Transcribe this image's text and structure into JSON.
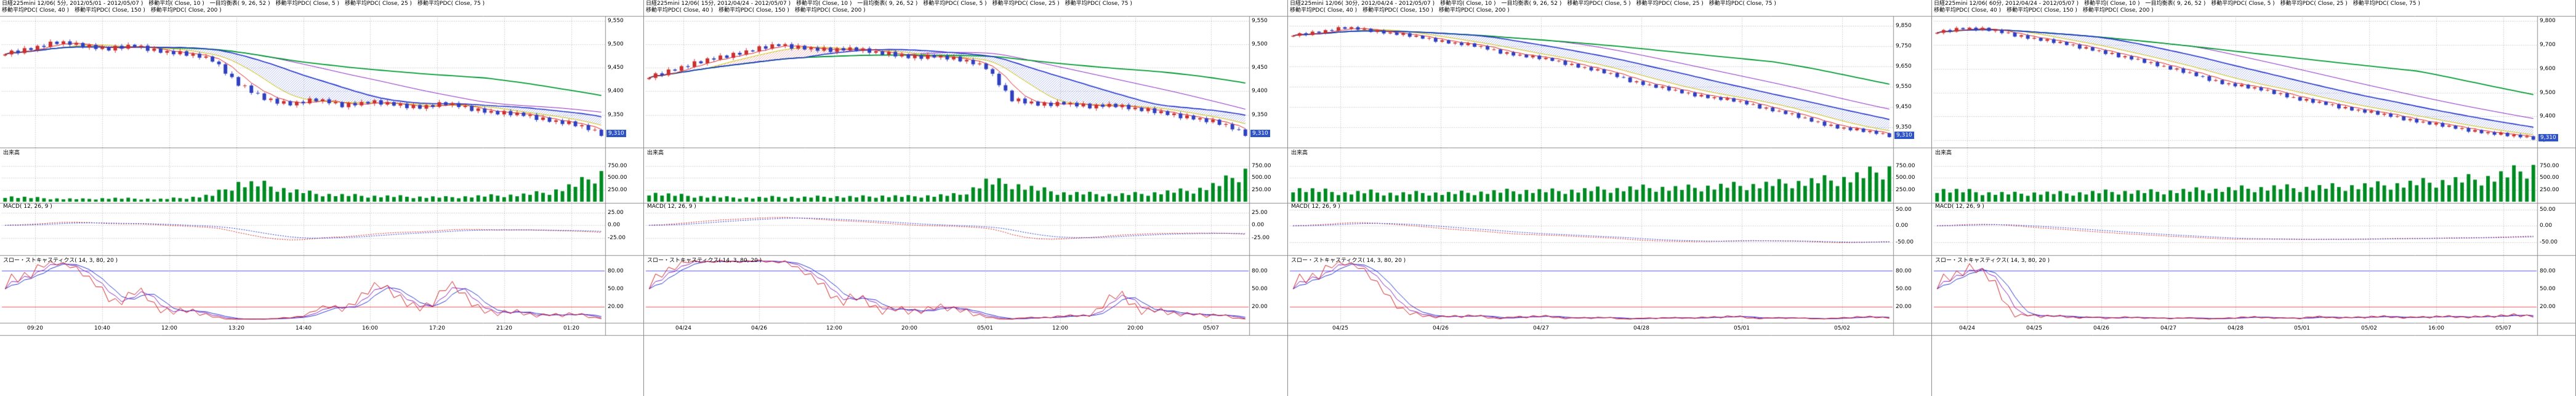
{
  "colors": {
    "up": "#cc3030",
    "down": "#3040c0",
    "volume": "#008a22",
    "ma5": "#e02020",
    "ma10": "#cfc000",
    "ma25": "#2233cc",
    "ma40": "#8822bb",
    "ma75": "#009933",
    "cloud_up": "#dd7070",
    "cloud_down": "#7080dd",
    "macd": "#cc2222",
    "signal": "#2233cc",
    "stoch_k": "#cc2222",
    "stoch_d": "#8822bb",
    "stoch_sd": "#2233cc",
    "ref_hi": "#7777ee",
    "ref_lo": "#ee7777",
    "grid": "#b8b8b8",
    "pane_border": "#8c8c8c",
    "badge_bg": "#2f54c8"
  },
  "sections": {
    "volume_label": "出来高",
    "macd_label": "MACD( 12, 26, 9 )",
    "stoch_label": "スロー・ストキャスティクス( 14, 3, 80, 20 )"
  },
  "panels": [
    {
      "header_line1": "日経225mini 12/06( 5分, 2012/05/01 - 2012/05/07 )　移動平均( Close, 10 )　一目均衡表( 9, 26, 52 )　移動平均PDC( Close, 5 )　移動平均PDC( Close, 25 )　移動平均PDC( Close, 75 )",
      "header_line2": "移動平均PDC( Close, 40 )　移動平均PDC( Close, 150 )　移動平均PDC( Close, 200 )",
      "price_axis": {
        "min": 9280,
        "max": 9560,
        "labels": [
          "9,550",
          "9,500",
          "9,450",
          "9,400",
          "9,350"
        ],
        "badge": "9,310"
      },
      "volume_axis": {
        "max": 1000,
        "labels": [
          "750.00",
          "500.00",
          "250.00"
        ]
      },
      "macd_axis": {
        "min": -60,
        "max": 45,
        "labels": [
          "25.00",
          "0.00",
          "-25.00"
        ]
      },
      "stoch_axis": {
        "hi": 80,
        "lo": 20,
        "labels": [
          "80.00",
          "50.00",
          "20.00"
        ]
      },
      "time_axis": [
        "09:20",
        "10:40",
        "12:00",
        "13:20",
        "14:40",
        "16:00",
        "17:20",
        "21:20",
        "01:20"
      ],
      "chart_data": {
        "type": "candlestick",
        "wiggle": 5,
        "ma_periods": [
          5,
          10,
          25,
          40,
          75
        ],
        "closes": [
          9480,
          9492,
          9503,
          9498,
          9490,
          9496,
          9486,
          9478,
          9468,
          9415,
          9383,
          9374,
          9381,
          9371,
          9377,
          9371,
          9367,
          9373,
          9363,
          9354,
          9349,
          9339,
          9328,
          9310
        ],
        "volumes": [
          120,
          90,
          70,
          60,
          80,
          70,
          60,
          90,
          150,
          420,
          380,
          260,
          180,
          150,
          130,
          120,
          110,
          100,
          120,
          140,
          160,
          220,
          380,
          650
        ]
      }
    },
    {
      "header_line1": "日経225mini 12/06( 15分, 2012/04/24 - 2012/05/07 )　移動平均( Close, 10 )　一目均衡表( 9, 26, 52 )　移動平均PDC( Close, 5 )　移動平均PDC( Close, 25 )　移動平均PDC( Close, 75 )",
      "header_line2": "移動平均PDC( Close, 40 )　移動平均PDC( Close, 150 )　移動平均PDC( Close, 200 )",
      "price_axis": {
        "min": 9280,
        "max": 9560,
        "labels": [
          "9,550",
          "9,500",
          "9,450",
          "9,400",
          "9,350"
        ],
        "badge": "9,310"
      },
      "volume_axis": {
        "max": 1000,
        "labels": [
          "750.00",
          "500.00",
          "250.00"
        ]
      },
      "macd_axis": {
        "min": -60,
        "max": 45,
        "labels": [
          "25.00",
          "0.00",
          "-25.00"
        ]
      },
      "stoch_axis": {
        "hi": 80,
        "lo": 20,
        "labels": [
          "80.00",
          "50.00",
          "20.00"
        ]
      },
      "time_axis": [
        "04/24",
        "04/26",
        "12:00",
        "20:00",
        "05/01",
        "12:00",
        "20:00",
        "05/07"
      ],
      "chart_data": {
        "type": "candlestick",
        "wiggle": 5,
        "ma_periods": [
          5,
          10,
          25,
          40,
          75
        ],
        "closes": [
          9430,
          9448,
          9462,
          9476,
          9488,
          9498,
          9493,
          9486,
          9491,
          9481,
          9472,
          9476,
          9466,
          9452,
          9382,
          9371,
          9376,
          9366,
          9371,
          9361,
          9351,
          9344,
          9331,
          9310
        ],
        "volumes": [
          200,
          150,
          120,
          100,
          90,
          110,
          100,
          120,
          110,
          130,
          120,
          140,
          160,
          450,
          400,
          280,
          200,
          180,
          160,
          180,
          220,
          260,
          400,
          700
        ]
      }
    },
    {
      "header_line1": "日経225mini 12/06( 30分, 2012/04/24 - 2012/05/07 )　移動平均( Close, 10 )　一目均衡表( 9, 26, 52 )　移動平均PDC( Close, 5 )　移動平均PDC( Close, 25 )　移動平均PDC( Close, 75 )",
      "header_line2": "移動平均PDC( Close, 40 )　移動平均PDC( Close, 150 )　移動平均PDC( Close, 200 )",
      "price_axis": {
        "min": 9250,
        "max": 9900,
        "labels": [
          "9,850",
          "9,750",
          "9,650",
          "9,550",
          "9,450",
          "9,350"
        ],
        "badge": "9,310"
      },
      "volume_axis": {
        "max": 1000,
        "labels": [
          "750.00",
          "500.00",
          "250.00"
        ]
      },
      "macd_axis": {
        "min": -90,
        "max": 70,
        "labels": [
          "50.00",
          "0.00",
          "-50.00"
        ]
      },
      "stoch_axis": {
        "hi": 80,
        "lo": 20,
        "labels": [
          "80.00",
          "50.00",
          "20.00"
        ]
      },
      "time_axis": [
        "04/25",
        "04/26",
        "04/27",
        "04/28",
        "05/01",
        "05/02"
      ],
      "chart_data": {
        "type": "candlestick",
        "wiggle": 8,
        "ma_periods": [
          5,
          10,
          25,
          40,
          75
        ],
        "closes": [
          9805,
          9823,
          9841,
          9829,
          9812,
          9791,
          9771,
          9752,
          9722,
          9701,
          9681,
          9652,
          9621,
          9581,
          9551,
          9521,
          9501,
          9481,
          9451,
          9421,
          9381,
          9351,
          9331,
          9310
        ],
        "volumes": [
          300,
          250,
          200,
          220,
          180,
          200,
          190,
          210,
          230,
          250,
          240,
          260,
          280,
          300,
          320,
          300,
          340,
          360,
          380,
          420,
          460,
          500,
          600,
          750
        ]
      }
    },
    {
      "header_line1": "日経225mini 12/06( 60分, 2012/04/24 - 2012/05/07 )　移動平均( Close, 10 )　一目均衡表( 9, 26, 52 )　移動平均PDC( Close, 5 )　移動平均PDC( Close, 25 )　移動平均PDC( Close, 75 )",
      "header_line2": "移動平均PDC( Close, 40 )　移動平均PDC( Close, 150 )　移動平均PDC( Close, 200 )",
      "price_axis": {
        "min": 9270,
        "max": 9820,
        "labels": [
          "9,800",
          "9,700",
          "9,600",
          "9,500",
          "9,400",
          "9,300"
        ],
        "badge": "9,310"
      },
      "volume_axis": {
        "max": 1000,
        "labels": [
          "750.00",
          "500.00",
          "250.00"
        ]
      },
      "macd_axis": {
        "min": -90,
        "max": 70,
        "labels": [
          "50.00",
          "0.00",
          "-50.00"
        ]
      },
      "stoch_axis": {
        "hi": 80,
        "lo": 20,
        "labels": [
          "80.00",
          "50.00",
          "20.00"
        ]
      },
      "time_axis": [
        "04/24",
        "04/25",
        "04/26",
        "04/27",
        "04/28",
        "05/01",
        "05/02",
        "16:00",
        "05/07"
      ],
      "chart_data": {
        "type": "candlestick",
        "wiggle": 7,
        "ma_periods": [
          5,
          10,
          25,
          40,
          75
        ],
        "closes": [
          9752,
          9771,
          9761,
          9741,
          9721,
          9701,
          9681,
          9651,
          9631,
          9601,
          9571,
          9541,
          9521,
          9501,
          9471,
          9451,
          9431,
          9411,
          9391,
          9371,
          9351,
          9336,
          9321,
          9310
        ],
        "volumes": [
          280,
          240,
          200,
          180,
          200,
          190,
          210,
          230,
          220,
          240,
          260,
          280,
          300,
          320,
          310,
          330,
          350,
          370,
          400,
          440,
          480,
          520,
          620,
          780
        ]
      }
    }
  ]
}
